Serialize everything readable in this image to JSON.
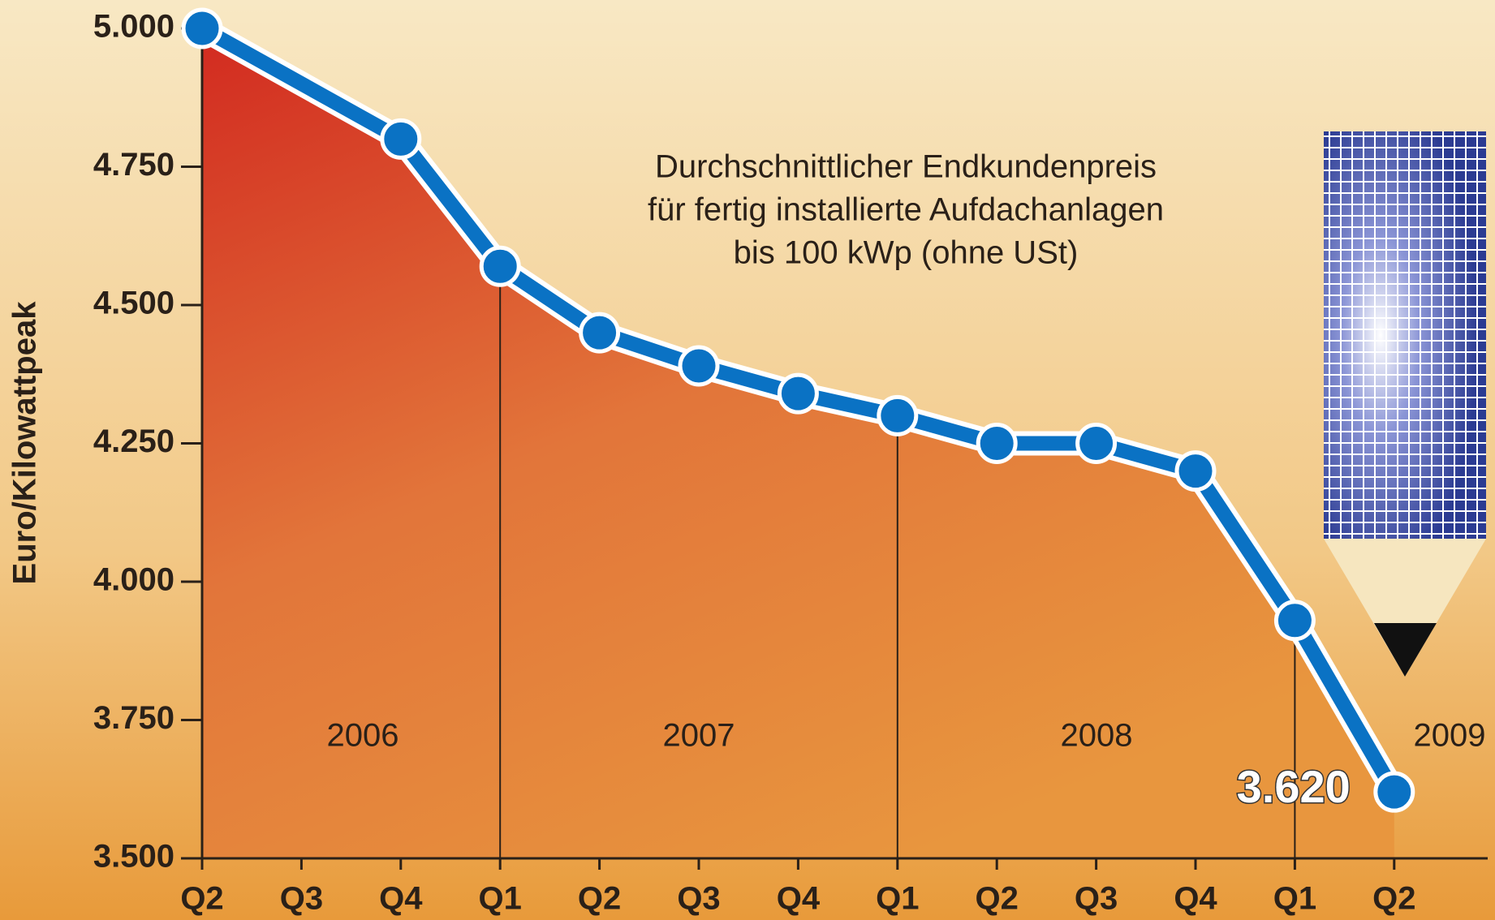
{
  "chart_data": {
    "type": "area",
    "title": [
      "Durchschnittlicher Endkundenpreis",
      "für fertig installierte Aufdachanlagen",
      "bis 100 kWp (ohne USt)"
    ],
    "ylabel": "Euro/Kilowattpeak",
    "categories": [
      "Q2",
      "Q3",
      "Q4",
      "Q1",
      "Q2",
      "Q3",
      "Q4",
      "Q1",
      "Q2",
      "Q3",
      "Q4",
      "Q1",
      "Q2"
    ],
    "x": [
      0,
      2,
      3,
      4,
      5,
      6,
      7,
      8,
      9,
      10,
      11,
      12
    ],
    "values": [
      5000,
      4800,
      4570,
      4450,
      4390,
      4340,
      4300,
      4250,
      4250,
      4200,
      3930,
      3620
    ],
    "value_labels": [
      null,
      null,
      null,
      null,
      null,
      null,
      null,
      null,
      null,
      null,
      null,
      "3.620"
    ],
    "years": [
      "2006",
      "2007",
      "2008",
      "2009"
    ],
    "color": "#0a72c4",
    "ylim": [
      3500,
      5000
    ],
    "yticks": [
      {
        "value": 3500,
        "label": "3.500"
      },
      {
        "value": 3750,
        "label": "3.750"
      },
      {
        "value": 4000,
        "label": "4.000"
      },
      {
        "value": 4250,
        "label": "4.250"
      },
      {
        "value": 4500,
        "label": "4.500"
      },
      {
        "value": 4750,
        "label": "4.750"
      },
      {
        "value": 5000,
        "label": "5.000"
      }
    ]
  }
}
